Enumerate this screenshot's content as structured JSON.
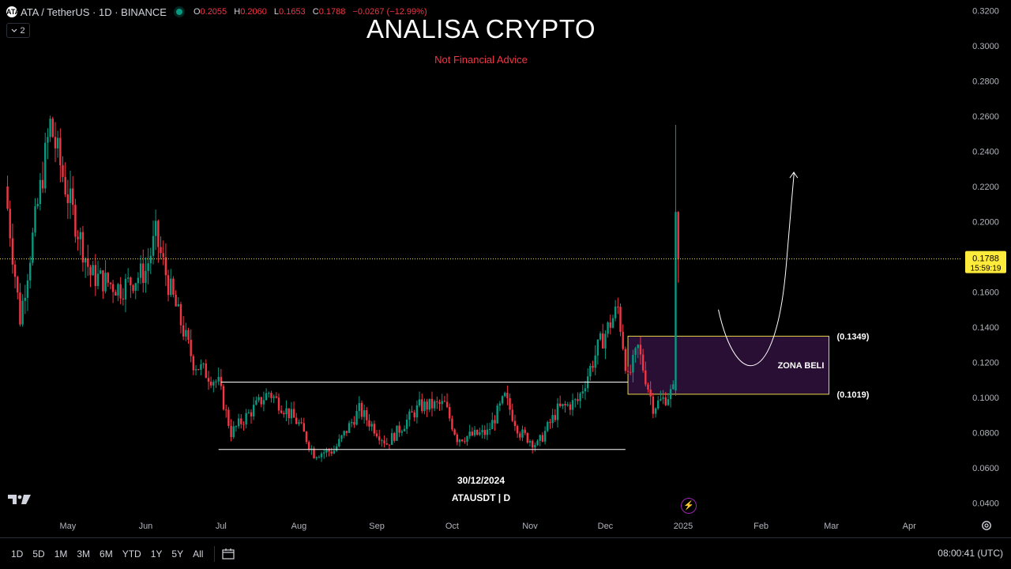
{
  "header": {
    "logo_text": "ATA",
    "symbol_title": "ATA / TetherUS · 1D · BINANCE",
    "ohlc": [
      {
        "key": "O",
        "value": "0.2055"
      },
      {
        "key": "H",
        "value": "0.2060"
      },
      {
        "key": "L",
        "value": "0.1653"
      },
      {
        "key": "C",
        "value": "0.1788"
      }
    ],
    "change": "−0.0267 (−12.99%)",
    "indicator_count": "2"
  },
  "overlay": {
    "headline": "ANALISA CRYPTO",
    "subline": "Not Financial Advice",
    "watermark_date": "30/12/2024",
    "watermark_symbol": "ATAUSDT | D"
  },
  "colors": {
    "up": "#089981",
    "down": "#f23645",
    "zone_fill": "#2a0f35",
    "zone_border": "#e8d44d",
    "price_tag": "#ffeb3b",
    "level_line": "#ffffff"
  },
  "chart_data": {
    "type": "candlestick",
    "symbol": "ATAUSDT",
    "interval": "1D",
    "y_axis": {
      "ticks": [
        "0.3200",
        "0.3000",
        "0.2800",
        "0.2600",
        "0.2400",
        "0.2200",
        "0.2000",
        "0.1800",
        "0.1600",
        "0.1400",
        "0.1200",
        "0.1000",
        "0.0800",
        "0.0600",
        "0.0400"
      ],
      "range": [
        0.034,
        0.3215
      ]
    },
    "x_axis": {
      "ticks": [
        "May",
        "Jun",
        "Jul",
        "Aug",
        "Sep",
        "Oct",
        "Nov",
        "Dec",
        "2025",
        "Feb",
        "Mar",
        "Apr"
      ],
      "tick_dates": [
        "2024-05-01",
        "2024-06-01",
        "2024-07-01",
        "2024-08-01",
        "2024-09-01",
        "2024-10-01",
        "2024-11-01",
        "2024-12-01",
        "2025-01-01",
        "2025-02-01",
        "2025-03-01",
        "2025-04-01"
      ],
      "range": [
        "2024-04-04",
        "2025-04-22"
      ]
    },
    "current_price": {
      "value": 0.1788,
      "label": "0.1788",
      "countdown": "15:59:19"
    },
    "key_points": [
      {
        "date": "2024-04-06",
        "close": 0.22
      },
      {
        "date": "2024-04-12",
        "close": 0.145
      },
      {
        "date": "2024-04-24",
        "close": 0.255
      },
      {
        "date": "2024-05-01",
        "close": 0.215
      },
      {
        "date": "2024-05-10",
        "close": 0.17
      },
      {
        "date": "2024-05-22",
        "close": 0.162
      },
      {
        "date": "2024-06-01",
        "close": 0.172
      },
      {
        "date": "2024-06-05",
        "close": 0.192
      },
      {
        "date": "2024-06-10",
        "close": 0.165
      },
      {
        "date": "2024-06-20",
        "close": 0.12
      },
      {
        "date": "2024-06-30",
        "close": 0.108
      },
      {
        "date": "2024-07-05",
        "close": 0.08
      },
      {
        "date": "2024-07-20",
        "close": 0.103
      },
      {
        "date": "2024-08-01",
        "close": 0.085
      },
      {
        "date": "2024-08-07",
        "close": 0.068
      },
      {
        "date": "2024-08-15",
        "close": 0.07
      },
      {
        "date": "2024-08-25",
        "close": 0.093
      },
      {
        "date": "2024-09-05",
        "close": 0.074
      },
      {
        "date": "2024-09-18",
        "close": 0.095
      },
      {
        "date": "2024-09-28",
        "close": 0.096
      },
      {
        "date": "2024-10-03",
        "close": 0.077
      },
      {
        "date": "2024-10-15",
        "close": 0.08
      },
      {
        "date": "2024-10-22",
        "close": 0.1
      },
      {
        "date": "2024-10-28",
        "close": 0.08
      },
      {
        "date": "2024-11-04",
        "close": 0.073
      },
      {
        "date": "2024-11-12",
        "close": 0.093
      },
      {
        "date": "2024-11-20",
        "close": 0.098
      },
      {
        "date": "2024-11-28",
        "close": 0.128
      },
      {
        "date": "2024-12-06",
        "close": 0.151
      },
      {
        "date": "2024-12-10",
        "close": 0.11
      },
      {
        "date": "2024-12-14",
        "close": 0.128
      },
      {
        "date": "2024-12-20",
        "close": 0.095
      },
      {
        "date": "2024-12-25",
        "close": 0.1
      },
      {
        "date": "2024-12-28",
        "close": 0.104
      },
      {
        "date": "2024-12-29",
        "close": 0.2055
      },
      {
        "date": "2024-12-30",
        "close": 0.1788
      }
    ],
    "last_candles": [
      {
        "date": "2024-12-29",
        "open": 0.104,
        "high": 0.255,
        "low": 0.101,
        "close": 0.2055
      },
      {
        "date": "2024-12-30",
        "open": 0.2055,
        "high": 0.206,
        "low": 0.1653,
        "close": 0.1788
      }
    ],
    "levels": [
      {
        "price": 0.1088,
        "from": "2024-07-01",
        "to": "2024-12-10"
      },
      {
        "price": 0.0705,
        "from": "2024-06-30",
        "to": "2024-12-09"
      }
    ],
    "buy_zone": {
      "label": "ZONA BELI",
      "top": 0.1349,
      "bottom": 0.1019,
      "top_label": "(0.1349)",
      "bottom_label": "(0.1019)",
      "from": "2024-12-10",
      "to": "2025-02-28"
    },
    "projection_path": [
      {
        "date": "2025-01-15",
        "price": 0.15
      },
      {
        "date": "2025-01-30",
        "price": 0.122
      },
      {
        "date": "2025-02-11",
        "price": 0.175
      },
      {
        "date": "2025-02-14",
        "price": 0.228
      }
    ]
  },
  "footer": {
    "ranges": [
      "1D",
      "5D",
      "1M",
      "3M",
      "6M",
      "YTD",
      "1Y",
      "5Y",
      "All"
    ],
    "clock": "08:00:41 (UTC)"
  }
}
